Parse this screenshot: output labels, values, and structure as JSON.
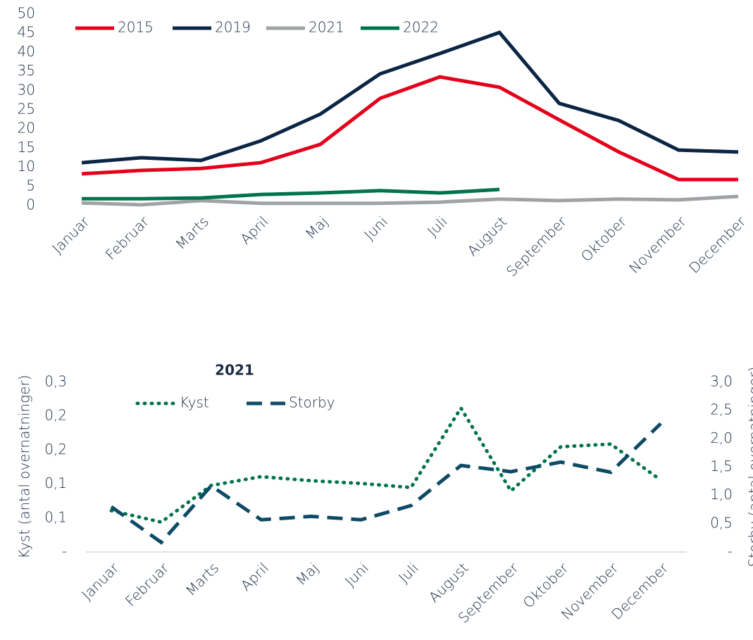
{
  "chart_data": [
    {
      "type": "line",
      "categories": [
        "Januar",
        "Februar",
        "Marts",
        "April",
        "Maj",
        "Juni",
        "Juli",
        "August",
        "September",
        "Oktober",
        "November",
        "December"
      ],
      "ylim": [
        0,
        50
      ],
      "yticks": [
        0,
        5,
        10,
        15,
        20,
        25,
        30,
        35,
        40,
        45,
        50
      ],
      "series": [
        {
          "name": "2015",
          "color": "#e3001b",
          "values": [
            8.3,
            9.2,
            9.7,
            11.2,
            16,
            28,
            33.6,
            30.9,
            22.4,
            14,
            6.8,
            6.8
          ]
        },
        {
          "name": "2019",
          "color": "#0b2545",
          "values": [
            11.2,
            12.5,
            11.8,
            16.9,
            23.9,
            34.4,
            39.7,
            45.2,
            26.7,
            22.2,
            14.5,
            14
          ]
        },
        {
          "name": "2021",
          "color": "#a0a3a6",
          "values": [
            0.7,
            0.2,
            1.3,
            0.6,
            0.6,
            0.6,
            0.9,
            1.7,
            1.3,
            1.7,
            1.5,
            2.4
          ]
        },
        {
          "name": "2022",
          "color": "#00734a",
          "values": [
            1.8,
            1.8,
            2,
            2.9,
            3.3,
            3.9,
            3.3,
            4.2,
            null,
            null,
            null,
            null
          ]
        }
      ]
    },
    {
      "type": "line",
      "title": "2021",
      "y_label": "Kyst (antal overnatninger)",
      "y2_label": "Storby (antal overnatninger)",
      "categories": [
        "Januar",
        "Februar",
        "Marts",
        "April",
        "Maj",
        "Juni",
        "Juli",
        "August",
        "September",
        "Oktober",
        "November",
        "December"
      ],
      "ylim": [
        0,
        0.25
      ],
      "yticks": [
        {
          "value": 0,
          "label": "-"
        },
        {
          "value": 0.05,
          "label": "0,1"
        },
        {
          "value": 0.1,
          "label": "0,1"
        },
        {
          "value": 0.15,
          "label": "0,2"
        },
        {
          "value": 0.2,
          "label": "0,2"
        },
        {
          "value": 0.25,
          "label": "0,3"
        }
      ],
      "y2lim": [
        0,
        3
      ],
      "y2ticks": [
        {
          "value": 0,
          "label": "-"
        },
        {
          "value": 0.5,
          "label": "0,5"
        },
        {
          "value": 1,
          "label": "1,0"
        },
        {
          "value": 1.5,
          "label": "1,5"
        },
        {
          "value": 2,
          "label": "2,0"
        },
        {
          "value": 2.5,
          "label": "2,5"
        },
        {
          "value": 3,
          "label": "3,0"
        }
      ],
      "series": [
        {
          "name": "Kyst",
          "color": "#00734a",
          "style": "dotted",
          "values": [
            0.061,
            0.044,
            0.098,
            0.111,
            0.105,
            0.101,
            0.095,
            0.212,
            0.09,
            0.155,
            0.159,
            0.106
          ]
        },
        {
          "name": "Storby",
          "color": "#0d4a66",
          "style": "dashed",
          "axis": "y2",
          "values": [
            0.8,
            0.17,
            1.17,
            0.57,
            0.63,
            0.57,
            0.82,
            1.53,
            1.42,
            1.59,
            1.41,
            2.27
          ]
        }
      ]
    }
  ]
}
